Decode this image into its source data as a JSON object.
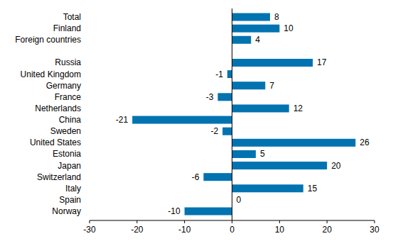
{
  "chart_data": {
    "type": "bar",
    "orientation": "horizontal",
    "categories": [
      "Total",
      "Finland",
      "Foreign countries",
      null,
      "Russia",
      "United Kingdom",
      "Germany",
      "France",
      "Netherlands",
      "China",
      "Sweden",
      "United States",
      "Estonia",
      "Japan",
      "Switzerland",
      "Italy",
      "Spain",
      "Norway"
    ],
    "values": [
      8,
      10,
      4,
      null,
      17,
      -1,
      7,
      -3,
      12,
      -21,
      -2,
      26,
      5,
      20,
      -6,
      15,
      0,
      -10
    ],
    "color": "#0073b0",
    "xlim": [
      -30,
      30
    ],
    "xticks": [
      -30,
      -20,
      -10,
      0,
      10,
      20,
      30
    ],
    "grid": false,
    "data_labels": true
  }
}
